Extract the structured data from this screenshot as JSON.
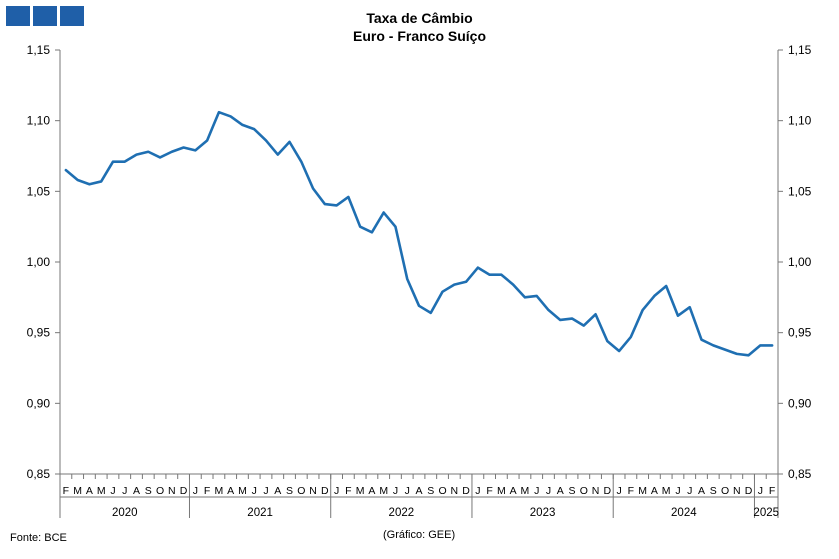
{
  "logo": {
    "color": "#1f5fa8",
    "blocks": 3
  },
  "source": "Fonte: BCE",
  "credit": "(Gráfico: GEE)",
  "chart_data": {
    "type": "line",
    "title": "Taxa de Câmbio",
    "subtitle": "Euro - Franco Suíço",
    "ylim": [
      0.85,
      1.15
    ],
    "yticks": [
      "0,85",
      "0,90",
      "0,95",
      "1,00",
      "1,05",
      "1,10",
      "1,15"
    ],
    "ytick_values": [
      0.85,
      0.9,
      0.95,
      1.0,
      1.05,
      1.1,
      1.15
    ],
    "grid": false,
    "line_color": "#1f6fb2",
    "month_labels": [
      "F",
      "M",
      "A",
      "M",
      "J",
      "J",
      "A",
      "S",
      "O",
      "N",
      "D",
      "J",
      "F",
      "M",
      "A",
      "M",
      "J",
      "J",
      "A",
      "S",
      "O",
      "N",
      "D",
      "J",
      "F",
      "M",
      "A",
      "M",
      "J",
      "J",
      "A",
      "S",
      "O",
      "N",
      "D",
      "J",
      "F",
      "M",
      "A",
      "M",
      "J",
      "J",
      "A",
      "S",
      "O",
      "N",
      "D",
      "J",
      "F",
      "M",
      "A",
      "M",
      "J",
      "J",
      "A",
      "S",
      "O",
      "N",
      "D",
      "J",
      "F"
    ],
    "years": [
      {
        "label": "2020",
        "start": 0,
        "count": 11
      },
      {
        "label": "2021",
        "start": 11,
        "count": 12
      },
      {
        "label": "2022",
        "start": 23,
        "count": 12
      },
      {
        "label": "2023",
        "start": 35,
        "count": 12
      },
      {
        "label": "2024",
        "start": 47,
        "count": 12
      },
      {
        "label": "2025",
        "start": 59,
        "count": 2
      }
    ],
    "series": [
      {
        "values": [
          1.065,
          1.058,
          1.055,
          1.057,
          1.071,
          1.071,
          1.076,
          1.078,
          1.074,
          1.078,
          1.081,
          1.079,
          1.086,
          1.106,
          1.103,
          1.097,
          1.094,
          1.086,
          1.076,
          1.085,
          1.071,
          1.052,
          1.041,
          1.04,
          1.046,
          1.025,
          1.021,
          1.035,
          1.025,
          0.988,
          0.969,
          0.964,
          0.979,
          0.984,
          0.986,
          0.996,
          0.991,
          0.991,
          0.984,
          0.975,
          0.976,
          0.966,
          0.959,
          0.96,
          0.955,
          0.963,
          0.944,
          0.937,
          0.947,
          0.966,
          0.976,
          0.983,
          0.962,
          0.968,
          0.945,
          0.941,
          0.938,
          0.935,
          0.934,
          0.941,
          0.941
        ]
      }
    ]
  }
}
